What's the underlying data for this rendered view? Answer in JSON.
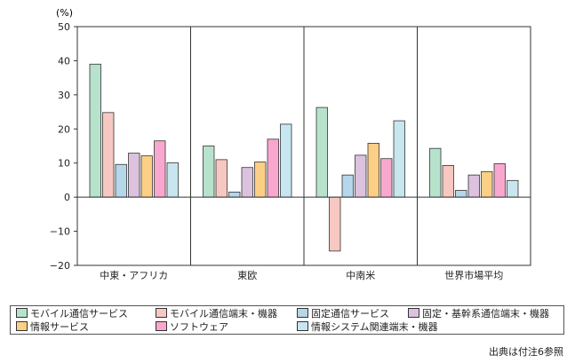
{
  "chart_data": {
    "type": "bar",
    "unit_label": "(%)",
    "categories": [
      "中東・アフリカ",
      "東欧",
      "中南米",
      "世界市場平均"
    ],
    "ylim": [
      -20,
      50
    ],
    "yticks": [
      50,
      40,
      30,
      20,
      10,
      0,
      -10,
      -20
    ],
    "ytick_labels": [
      "50",
      "40",
      "30",
      "20",
      "10",
      "0",
      "−10",
      "−20"
    ],
    "grid": false,
    "legend_position": "bottom",
    "series": [
      {
        "name": "モバイル通信サービス",
        "color": "#b7e3cc",
        "values": [
          39.0,
          15.0,
          26.3,
          14.3
        ]
      },
      {
        "name": "モバイル通信端末・機器",
        "color": "#f7c8c1",
        "values": [
          24.8,
          11.0,
          -15.8,
          9.3
        ]
      },
      {
        "name": "固定通信サービス",
        "color": "#b6d6ea",
        "values": [
          9.6,
          1.5,
          6.5,
          2.0
        ]
      },
      {
        "name": "固定・基幹系通信端末・機器",
        "color": "#dcc2df",
        "values": [
          12.9,
          8.7,
          12.3,
          6.5
        ]
      },
      {
        "name": "情報サービス",
        "color": "#fccf86",
        "values": [
          12.1,
          10.3,
          15.8,
          7.5
        ]
      },
      {
        "name": "ソフトウェア",
        "color": "#f8a8cf",
        "values": [
          16.5,
          17.0,
          11.3,
          9.8
        ]
      },
      {
        "name": "情報システム関連端末・機器",
        "color": "#c7e6ef",
        "values": [
          10.1,
          21.4,
          22.4,
          4.9
        ]
      }
    ]
  },
  "source_note": "出典は付注6参照"
}
